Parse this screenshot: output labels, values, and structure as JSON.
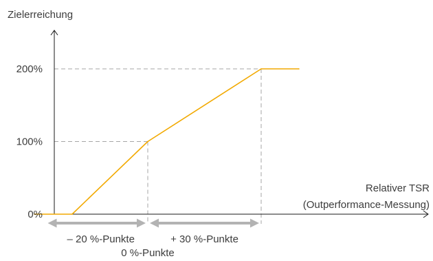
{
  "chart_data": {
    "type": "line",
    "ylabel": "Zielerreichung",
    "xlabel": [
      "Relativer TSR",
      "(Outperformance-Messung)"
    ],
    "y_ticks": [
      "0%",
      "100%",
      "200%"
    ],
    "y_tick_values": [
      0,
      100,
      200
    ],
    "x_unit": "%-Punkte",
    "xlim": [
      -30,
      45
    ],
    "ylim": [
      0,
      200
    ],
    "series": [
      {
        "color": "#f2a900",
        "x": [
          -30,
          -28,
          -20,
          0,
          30,
          40
        ],
        "y": [
          0,
          0,
          0,
          100,
          200,
          200
        ]
      }
    ],
    "reference_points": [
      {
        "x": 0,
        "y": 100
      },
      {
        "x": 30,
        "y": 200
      }
    ],
    "range_annotations": [
      {
        "from": -27,
        "to": 0,
        "label": "– 20 %-Punkte"
      },
      {
        "from": 0,
        "to": 30,
        "label": "+ 30 %-Punkte"
      }
    ],
    "center_label": "0 %-Punkte",
    "grid": false,
    "colors": {
      "axis": "#1a1a1a",
      "guide": "#a6a6a6",
      "arrow": "#b3b3b3",
      "text": "#3c3c3c"
    }
  }
}
